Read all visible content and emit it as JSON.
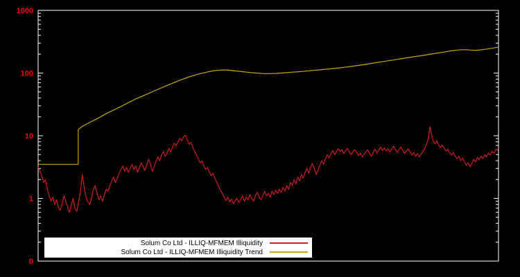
{
  "chart": {
    "background": "#000000",
    "border_color": "#ffffff",
    "tick_label_color": "#ff0000"
  },
  "chart_data": {
    "type": "line",
    "title": "",
    "xlabel": "",
    "ylabel": "",
    "y_scale": "log",
    "ylim": [
      0.1,
      1000
    ],
    "grid": false,
    "legend_position": "bottom-left-inside",
    "yticks": [
      {
        "label": "1000",
        "value": 1000
      },
      {
        "label": "100",
        "value": 100
      },
      {
        "label": "10",
        "value": 10
      },
      {
        "label": "1",
        "value": 1
      },
      {
        "label": "0",
        "value": 0.1
      }
    ],
    "series": [
      {
        "name": "Solum Co Ltd - ILLIQ-MFMEM Illiquidity",
        "color": "#cf1d1d",
        "points": [
          [
            0.0,
            3.2
          ],
          [
            0.004,
            2.7
          ],
          [
            0.008,
            2.3
          ],
          [
            0.012,
            1.8
          ],
          [
            0.016,
            2.0
          ],
          [
            0.02,
            1.4
          ],
          [
            0.024,
            1.1
          ],
          [
            0.028,
            0.9
          ],
          [
            0.032,
            1.05
          ],
          [
            0.036,
            0.8
          ],
          [
            0.04,
            0.95
          ],
          [
            0.044,
            0.72
          ],
          [
            0.048,
            0.65
          ],
          [
            0.052,
            0.8
          ],
          [
            0.056,
            1.1
          ],
          [
            0.06,
            0.9
          ],
          [
            0.064,
            0.72
          ],
          [
            0.068,
            0.6
          ],
          [
            0.072,
            0.78
          ],
          [
            0.076,
            1.0
          ],
          [
            0.08,
            0.7
          ],
          [
            0.084,
            0.62
          ],
          [
            0.088,
            0.9
          ],
          [
            0.092,
            1.3
          ],
          [
            0.096,
            2.4
          ],
          [
            0.1,
            1.5
          ],
          [
            0.104,
            1.05
          ],
          [
            0.108,
            0.88
          ],
          [
            0.112,
            0.8
          ],
          [
            0.116,
            1.0
          ],
          [
            0.12,
            1.4
          ],
          [
            0.124,
            1.6
          ],
          [
            0.128,
            1.2
          ],
          [
            0.132,
            0.95
          ],
          [
            0.136,
            1.1
          ],
          [
            0.14,
            0.9
          ],
          [
            0.144,
            1.15
          ],
          [
            0.148,
            1.4
          ],
          [
            0.152,
            1.3
          ],
          [
            0.156,
            1.6
          ],
          [
            0.16,
            1.9
          ],
          [
            0.164,
            2.2
          ],
          [
            0.168,
            1.8
          ],
          [
            0.172,
            2.1
          ],
          [
            0.176,
            2.5
          ],
          [
            0.18,
            2.9
          ],
          [
            0.184,
            3.3
          ],
          [
            0.188,
            2.7
          ],
          [
            0.192,
            3.1
          ],
          [
            0.196,
            2.6
          ],
          [
            0.2,
            3.0
          ],
          [
            0.204,
            3.5
          ],
          [
            0.208,
            2.9
          ],
          [
            0.212,
            3.3
          ],
          [
            0.216,
            2.6
          ],
          [
            0.22,
            3.1
          ],
          [
            0.224,
            3.7
          ],
          [
            0.228,
            3.2
          ],
          [
            0.232,
            2.8
          ],
          [
            0.236,
            3.4
          ],
          [
            0.24,
            4.2
          ],
          [
            0.244,
            3.6
          ],
          [
            0.248,
            2.7
          ],
          [
            0.252,
            3.2
          ],
          [
            0.256,
            3.9
          ],
          [
            0.26,
            4.6
          ],
          [
            0.264,
            4.0
          ],
          [
            0.268,
            4.9
          ],
          [
            0.272,
            5.6
          ],
          [
            0.276,
            4.7
          ],
          [
            0.28,
            5.3
          ],
          [
            0.284,
            6.3
          ],
          [
            0.288,
            5.5
          ],
          [
            0.292,
            6.6
          ],
          [
            0.296,
            7.6
          ],
          [
            0.3,
            6.9
          ],
          [
            0.304,
            8.1
          ],
          [
            0.308,
            9.1
          ],
          [
            0.312,
            8.3
          ],
          [
            0.316,
            9.6
          ],
          [
            0.32,
            10.2
          ],
          [
            0.324,
            8.6
          ],
          [
            0.328,
            7.3
          ],
          [
            0.332,
            7.9
          ],
          [
            0.336,
            6.6
          ],
          [
            0.34,
            5.6
          ],
          [
            0.344,
            4.9
          ],
          [
            0.348,
            4.3
          ],
          [
            0.352,
            3.7
          ],
          [
            0.356,
            4.0
          ],
          [
            0.36,
            3.3
          ],
          [
            0.364,
            2.9
          ],
          [
            0.368,
            3.1
          ],
          [
            0.372,
            2.6
          ],
          [
            0.376,
            2.3
          ],
          [
            0.38,
            2.5
          ],
          [
            0.384,
            2.1
          ],
          [
            0.388,
            1.8
          ],
          [
            0.392,
            1.55
          ],
          [
            0.396,
            1.35
          ],
          [
            0.4,
            1.2
          ],
          [
            0.404,
            1.05
          ],
          [
            0.408,
            0.92
          ],
          [
            0.412,
            1.05
          ],
          [
            0.416,
            0.88
          ],
          [
            0.42,
            0.97
          ],
          [
            0.424,
            0.82
          ],
          [
            0.428,
            0.92
          ],
          [
            0.432,
            1.0
          ],
          [
            0.436,
            0.86
          ],
          [
            0.44,
            0.96
          ],
          [
            0.444,
            1.1
          ],
          [
            0.448,
            0.9
          ],
          [
            0.452,
            1.05
          ],
          [
            0.456,
            0.95
          ],
          [
            0.46,
            1.15
          ],
          [
            0.464,
            1.0
          ],
          [
            0.468,
            0.9
          ],
          [
            0.472,
            1.1
          ],
          [
            0.476,
            1.25
          ],
          [
            0.48,
            1.05
          ],
          [
            0.484,
            0.95
          ],
          [
            0.488,
            1.1
          ],
          [
            0.492,
            1.3
          ],
          [
            0.496,
            1.1
          ],
          [
            0.5,
            1.2
          ],
          [
            0.504,
            1.05
          ],
          [
            0.508,
            1.3
          ],
          [
            0.512,
            1.15
          ],
          [
            0.516,
            1.35
          ],
          [
            0.52,
            1.2
          ],
          [
            0.524,
            1.4
          ],
          [
            0.528,
            1.25
          ],
          [
            0.532,
            1.5
          ],
          [
            0.536,
            1.3
          ],
          [
            0.54,
            1.6
          ],
          [
            0.544,
            1.4
          ],
          [
            0.548,
            1.8
          ],
          [
            0.552,
            1.6
          ],
          [
            0.556,
            2.0
          ],
          [
            0.56,
            1.7
          ],
          [
            0.564,
            2.2
          ],
          [
            0.568,
            1.9
          ],
          [
            0.572,
            2.4
          ],
          [
            0.576,
            2.1
          ],
          [
            0.58,
            2.6
          ],
          [
            0.584,
            3.0
          ],
          [
            0.588,
            2.5
          ],
          [
            0.592,
            3.2
          ],
          [
            0.596,
            3.6
          ],
          [
            0.6,
            3.0
          ],
          [
            0.604,
            2.4
          ],
          [
            0.608,
            2.8
          ],
          [
            0.612,
            3.4
          ],
          [
            0.616,
            4.0
          ],
          [
            0.62,
            3.5
          ],
          [
            0.624,
            4.3
          ],
          [
            0.628,
            5.0
          ],
          [
            0.632,
            4.4
          ],
          [
            0.636,
            5.2
          ],
          [
            0.64,
            5.8
          ],
          [
            0.644,
            5.0
          ],
          [
            0.648,
            5.5
          ],
          [
            0.652,
            6.2
          ],
          [
            0.656,
            5.6
          ],
          [
            0.66,
            6.0
          ],
          [
            0.664,
            5.2
          ],
          [
            0.668,
            5.8
          ],
          [
            0.672,
            6.3
          ],
          [
            0.676,
            5.5
          ],
          [
            0.68,
            5.0
          ],
          [
            0.684,
            5.6
          ],
          [
            0.688,
            6.0
          ],
          [
            0.692,
            5.4
          ],
          [
            0.696,
            4.8
          ],
          [
            0.7,
            5.3
          ],
          [
            0.704,
            4.6
          ],
          [
            0.708,
            5.0
          ],
          [
            0.712,
            5.5
          ],
          [
            0.716,
            6.0
          ],
          [
            0.72,
            5.2
          ],
          [
            0.724,
            4.7
          ],
          [
            0.728,
            5.4
          ],
          [
            0.732,
            6.1
          ],
          [
            0.736,
            5.3
          ],
          [
            0.74,
            5.9
          ],
          [
            0.744,
            6.6
          ],
          [
            0.748,
            5.8
          ],
          [
            0.752,
            6.4
          ],
          [
            0.756,
            5.7
          ],
          [
            0.76,
            6.2
          ],
          [
            0.764,
            5.5
          ],
          [
            0.768,
            6.1
          ],
          [
            0.772,
            6.8
          ],
          [
            0.776,
            6.0
          ],
          [
            0.78,
            5.4
          ],
          [
            0.784,
            6.0
          ],
          [
            0.788,
            6.6
          ],
          [
            0.792,
            5.8
          ],
          [
            0.796,
            5.2
          ],
          [
            0.8,
            5.7
          ],
          [
            0.804,
            6.2
          ],
          [
            0.808,
            5.5
          ],
          [
            0.812,
            4.9
          ],
          [
            0.816,
            5.4
          ],
          [
            0.82,
            4.7
          ],
          [
            0.824,
            5.2
          ],
          [
            0.828,
            4.6
          ],
          [
            0.832,
            5.1
          ],
          [
            0.836,
            5.6
          ],
          [
            0.84,
            6.4
          ],
          [
            0.844,
            7.4
          ],
          [
            0.848,
            9.2
          ],
          [
            0.851,
            13.8
          ],
          [
            0.854,
            11.0
          ],
          [
            0.858,
            8.2
          ],
          [
            0.862,
            7.4
          ],
          [
            0.866,
            8.3
          ],
          [
            0.87,
            7.1
          ],
          [
            0.874,
            6.5
          ],
          [
            0.878,
            7.1
          ],
          [
            0.882,
            6.3
          ],
          [
            0.886,
            5.7
          ],
          [
            0.89,
            6.1
          ],
          [
            0.894,
            5.3
          ],
          [
            0.898,
            4.9
          ],
          [
            0.902,
            5.4
          ],
          [
            0.906,
            4.7
          ],
          [
            0.91,
            4.3
          ],
          [
            0.914,
            4.7
          ],
          [
            0.918,
            4.0
          ],
          [
            0.922,
            4.4
          ],
          [
            0.926,
            3.8
          ],
          [
            0.93,
            3.4
          ],
          [
            0.934,
            3.7
          ],
          [
            0.938,
            3.2
          ],
          [
            0.942,
            3.6
          ],
          [
            0.946,
            4.2
          ],
          [
            0.95,
            3.8
          ],
          [
            0.954,
            4.5
          ],
          [
            0.958,
            4.1
          ],
          [
            0.962,
            4.7
          ],
          [
            0.966,
            4.3
          ],
          [
            0.97,
            5.0
          ],
          [
            0.974,
            4.6
          ],
          [
            0.978,
            5.3
          ],
          [
            0.982,
            4.9
          ],
          [
            0.986,
            5.6
          ],
          [
            0.99,
            5.2
          ],
          [
            0.994,
            6.0
          ],
          [
            1.0,
            6.1
          ]
        ]
      },
      {
        "name": "Solum Co Ltd - ILLIQ-MFMEM Illiquidity Trend",
        "color": "#c8a800",
        "points": [
          [
            0.0,
            3.5
          ],
          [
            0.087,
            3.5
          ],
          [
            0.087,
            12.5
          ],
          [
            0.095,
            14
          ],
          [
            0.11,
            16
          ],
          [
            0.13,
            19
          ],
          [
            0.15,
            23
          ],
          [
            0.17,
            27
          ],
          [
            0.19,
            32
          ],
          [
            0.21,
            38
          ],
          [
            0.23,
            44
          ],
          [
            0.25,
            51
          ],
          [
            0.27,
            59
          ],
          [
            0.29,
            68
          ],
          [
            0.31,
            78
          ],
          [
            0.33,
            88
          ],
          [
            0.35,
            97
          ],
          [
            0.37,
            105
          ],
          [
            0.385,
            110
          ],
          [
            0.4,
            112
          ],
          [
            0.415,
            111
          ],
          [
            0.43,
            108
          ],
          [
            0.445,
            105
          ],
          [
            0.46,
            102
          ],
          [
            0.475,
            100
          ],
          [
            0.49,
            98
          ],
          [
            0.505,
            98
          ],
          [
            0.52,
            99
          ],
          [
            0.535,
            101
          ],
          [
            0.55,
            103
          ],
          [
            0.565,
            105
          ],
          [
            0.58,
            107
          ],
          [
            0.595,
            110
          ],
          [
            0.61,
            112
          ],
          [
            0.625,
            115
          ],
          [
            0.64,
            118
          ],
          [
            0.655,
            121
          ],
          [
            0.67,
            125
          ],
          [
            0.685,
            129
          ],
          [
            0.7,
            134
          ],
          [
            0.715,
            139
          ],
          [
            0.73,
            145
          ],
          [
            0.745,
            151
          ],
          [
            0.76,
            157
          ],
          [
            0.775,
            163
          ],
          [
            0.79,
            170
          ],
          [
            0.805,
            177
          ],
          [
            0.82,
            184
          ],
          [
            0.835,
            191
          ],
          [
            0.85,
            199
          ],
          [
            0.865,
            207
          ],
          [
            0.88,
            215
          ],
          [
            0.89,
            222
          ],
          [
            0.9,
            228
          ],
          [
            0.91,
            233
          ],
          [
            0.92,
            236
          ],
          [
            0.93,
            236
          ],
          [
            0.94,
            233
          ],
          [
            0.95,
            231
          ],
          [
            0.96,
            234
          ],
          [
            0.97,
            239
          ],
          [
            0.98,
            245
          ],
          [
            0.99,
            252
          ],
          [
            1.0,
            259
          ]
        ]
      }
    ]
  }
}
